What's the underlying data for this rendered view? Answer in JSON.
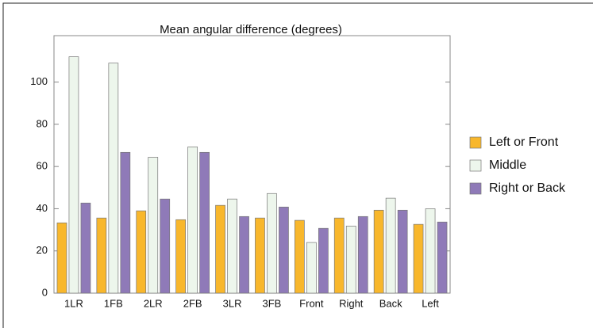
{
  "chart_data": {
    "type": "bar",
    "title": "Mean angular difference (degrees)",
    "categories": [
      "1LR",
      "1FB",
      "2LR",
      "2FB",
      "3LR",
      "3FB",
      "Front",
      "Right",
      "Back",
      "Left"
    ],
    "series": [
      {
        "name": "Left or Front",
        "color": "#f8b72c",
        "values": [
          33.3,
          35.6,
          39,
          34.8,
          41.6,
          35.6,
          34.5,
          35.6,
          39.3,
          32.6
        ]
      },
      {
        "name": "Middle",
        "color": "#edf6ec",
        "values": [
          112,
          109,
          64.4,
          69.3,
          44.6,
          47.2,
          24,
          31.8,
          45,
          40
        ]
      },
      {
        "name": "Right or Back",
        "color": "#8f7ab8",
        "values": [
          42.7,
          66.7,
          44.6,
          66.7,
          36.3,
          40.8,
          30.7,
          36.3,
          39.3,
          33.7
        ]
      }
    ],
    "ylim": [
      0,
      122
    ],
    "yticks": [
      0,
      20,
      40,
      60,
      80,
      100
    ],
    "legend": "right"
  }
}
